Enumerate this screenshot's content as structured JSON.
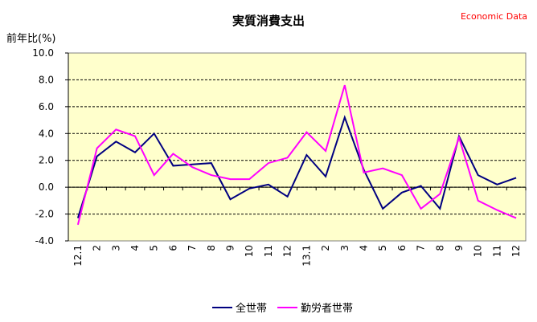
{
  "chart_data": {
    "type": "line",
    "title": "実質消費支出",
    "source": "Economic Data",
    "ylabel": "前年比(%)",
    "xlabel": "",
    "ylim": [
      -4.0,
      10.0
    ],
    "yticks": [
      -4.0,
      -2.0,
      0.0,
      2.0,
      4.0,
      6.0,
      8.0,
      10.0
    ],
    "ytick_labels": [
      "-4.0",
      "-2.0",
      "0.0",
      "2.0",
      "4.0",
      "6.0",
      "8.0",
      "10.0"
    ],
    "grid": "horizontal dashed",
    "legend": "bottom",
    "categories": [
      "12.1",
      "2",
      "3",
      "4",
      "5",
      "6",
      "7",
      "8",
      "9",
      "10",
      "11",
      "12",
      "13.1",
      "2",
      "3",
      "4",
      "5",
      "6",
      "7",
      "8",
      "9",
      "10",
      "11",
      "12"
    ],
    "series": [
      {
        "name": "全世帯",
        "color": "#000080",
        "values": [
          -2.3,
          2.3,
          3.4,
          2.6,
          4.0,
          1.6,
          1.7,
          1.8,
          -0.9,
          -0.1,
          0.2,
          -0.7,
          2.4,
          0.8,
          5.2,
          1.3,
          -1.6,
          -0.4,
          0.1,
          -1.6,
          3.8,
          0.9,
          0.2,
          0.7
        ]
      },
      {
        "name": "勤労者世帯",
        "color": "#ff00ff",
        "values": [
          -2.8,
          2.9,
          4.3,
          3.8,
          0.9,
          2.5,
          1.5,
          0.9,
          0.6,
          0.6,
          1.8,
          2.2,
          4.1,
          2.7,
          7.6,
          1.1,
          1.4,
          0.9,
          -1.6,
          -0.5,
          3.7,
          -1.0,
          -1.7,
          -2.3
        ]
      }
    ]
  }
}
